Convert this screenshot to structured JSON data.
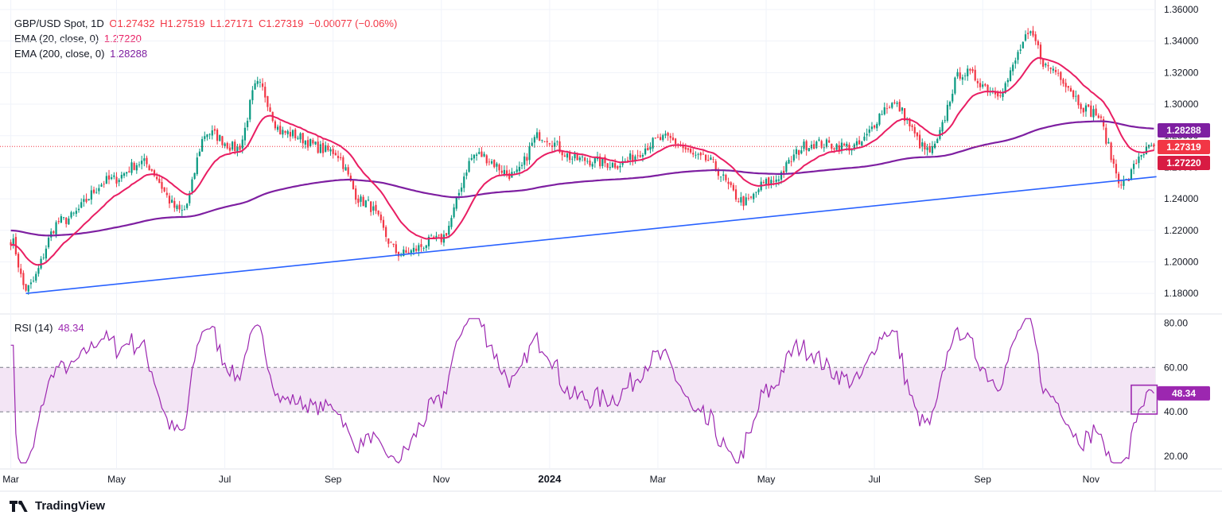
{
  "legend": {
    "symbol": "GBP/USD Spot, 1D",
    "open": "O1.27432",
    "high": "H1.27519",
    "low": "L1.27171",
    "close": "C1.27319",
    "change": "−0.00077 (−0.06%)",
    "ema20_label": "EMA (20, close, 0)",
    "ema20_value": "1.27220",
    "ema200_label": "EMA (200, close, 0)",
    "ema200_value": "1.28288",
    "rsi_label": "RSI (14)",
    "rsi_value": "48.34"
  },
  "brand": "TradingView",
  "colors": {
    "up": "#089981",
    "down": "#f23645",
    "ema20": "#e91e63",
    "ema200": "#7e1fa1",
    "trendline": "#2962ff",
    "rsi": "#9c27b0",
    "rsi_band": "#f3e5f5",
    "grid": "#f0f3fa"
  },
  "chart_data": [
    {
      "type": "line",
      "title": "GBP/USD Spot, 1D",
      "y_ticks": [
        "1.36000",
        "1.34000",
        "1.32000",
        "1.30000",
        "1.28000",
        "1.26000",
        "1.24000",
        "1.22000",
        "1.20000",
        "1.18000"
      ],
      "ylim": [
        1.168,
        1.362
      ],
      "x_ticks": [
        "Mar",
        "May",
        "Jul",
        "Sep",
        "Nov",
        "2024",
        "Mar",
        "May",
        "Jul",
        "Sep",
        "Nov"
      ],
      "x_tick_index": [
        0,
        42,
        85,
        128,
        171,
        214,
        257,
        300,
        343,
        386,
        429
      ],
      "n_bars": 455,
      "price_path": [
        [
          0,
          1.214
        ],
        [
          6,
          1.183
        ],
        [
          20,
          1.226
        ],
        [
          40,
          1.252
        ],
        [
          52,
          1.263
        ],
        [
          68,
          1.232
        ],
        [
          78,
          1.282
        ],
        [
          90,
          1.272
        ],
        [
          98,
          1.312
        ],
        [
          108,
          1.282
        ],
        [
          128,
          1.27
        ],
        [
          140,
          1.238
        ],
        [
          155,
          1.205
        ],
        [
          170,
          1.214
        ],
        [
          185,
          1.268
        ],
        [
          200,
          1.255
        ],
        [
          210,
          1.28
        ],
        [
          225,
          1.265
        ],
        [
          240,
          1.262
        ],
        [
          260,
          1.278
        ],
        [
          275,
          1.265
        ],
        [
          292,
          1.238
        ],
        [
          300,
          1.25
        ],
        [
          318,
          1.275
        ],
        [
          335,
          1.273
        ],
        [
          350,
          1.3
        ],
        [
          365,
          1.27
        ],
        [
          378,
          1.32
        ],
        [
          392,
          1.308
        ],
        [
          405,
          1.343
        ],
        [
          412,
          1.323
        ],
        [
          430,
          1.295
        ],
        [
          442,
          1.25
        ],
        [
          450,
          1.27
        ],
        [
          454,
          1.2732
        ]
      ],
      "series": [
        {
          "name": "EMA (20, close, 0)",
          "last": 1.2722
        },
        {
          "name": "EMA (200, close, 0)",
          "last": 1.28288
        }
      ],
      "trendline": [
        [
          6,
          1.18
        ],
        [
          455,
          1.254
        ]
      ],
      "last_price_labels": [
        "1.28288",
        "1.27319",
        "1.27220"
      ]
    },
    {
      "type": "line",
      "title": "RSI (14)",
      "y_ticks": [
        "80.00",
        "60.00",
        "40.00",
        "20.00"
      ],
      "ylim": [
        15,
        83
      ],
      "band": [
        40,
        60
      ],
      "last_value": 48.34,
      "last_value_label": "48.34",
      "x_ticks": [
        "Mar",
        "May",
        "Jul",
        "Sep",
        "Nov",
        "2024",
        "Mar",
        "May",
        "Jul",
        "Sep",
        "Nov"
      ]
    }
  ]
}
